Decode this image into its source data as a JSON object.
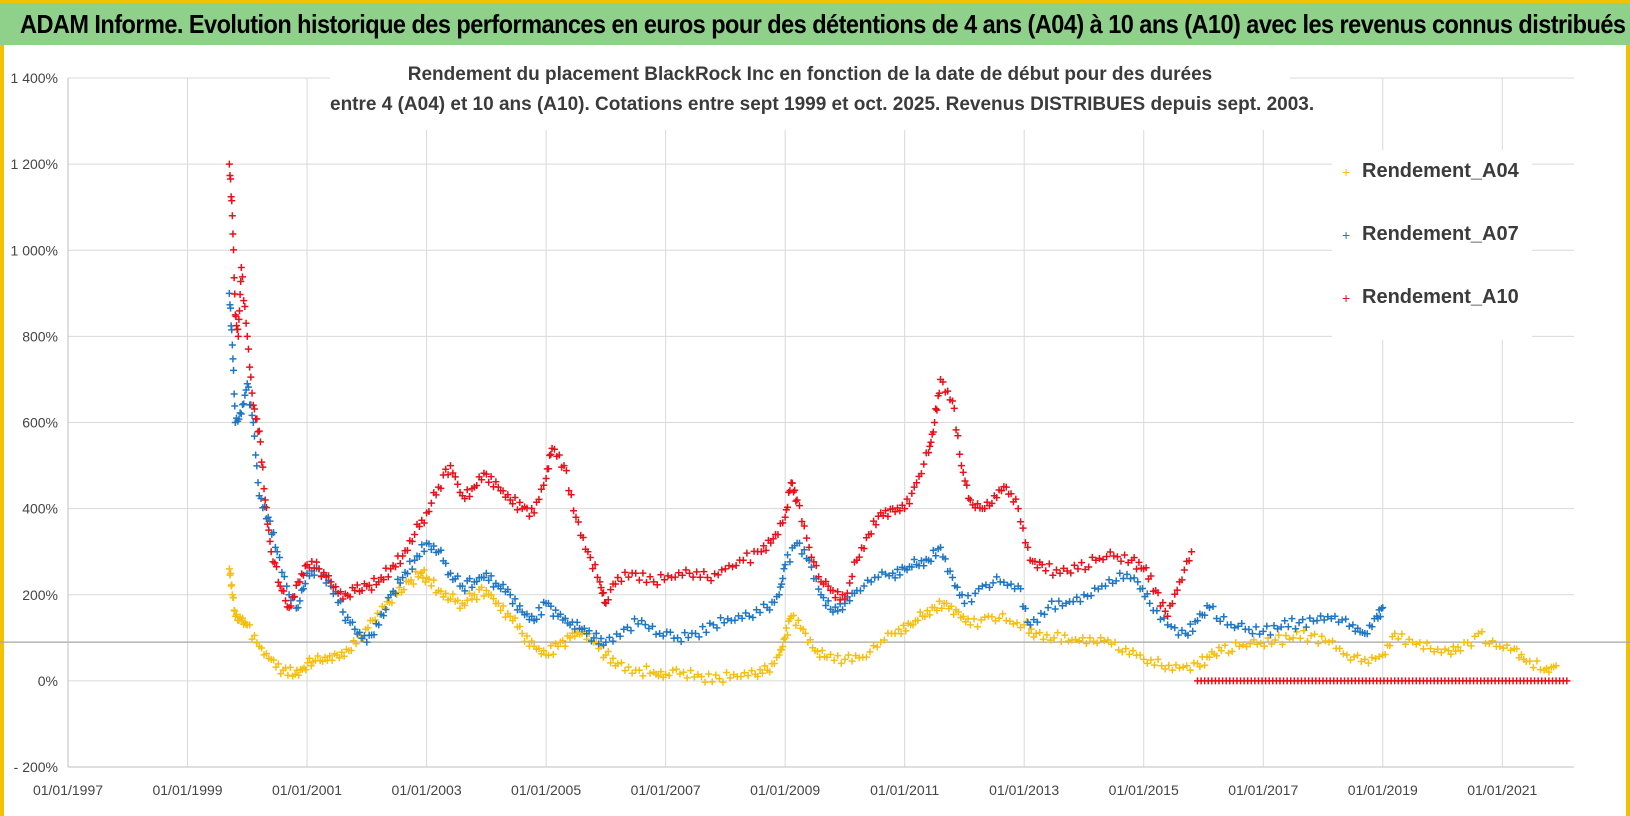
{
  "banner": {
    "title": "ADAM Informe. Evolution historique des performances en euros pour des détentions de 4 ans (A04) à 10 ans (A10) avec les revenus connus distribués"
  },
  "chart_data": {
    "type": "scatter",
    "title_line1": "Rendement du placement BlackRock Inc en fonction de la date de début pour des durées",
    "title_line2": "entre 4 (A04) et 10 ans (A10).  Cotations entre sept 1999 et oct. 2025.  Revenus DISTRIBUES depuis sept. 2003.",
    "xlabel": "",
    "ylabel": "",
    "xlim": [
      1997.0,
      2022.2
    ],
    "ylim": [
      -200,
      1400
    ],
    "x_ticks": [
      1997,
      1999,
      2001,
      2003,
      2005,
      2007,
      2009,
      2011,
      2013,
      2015,
      2017,
      2019,
      2021
    ],
    "x_tick_labels": [
      "01/01/1997",
      "01/01/1999",
      "01/01/2001",
      "01/01/2003",
      "01/01/2005",
      "01/01/2007",
      "01/01/2009",
      "01/01/2011",
      "01/01/2013",
      "01/01/2015",
      "01/01/2017",
      "01/01/2019",
      "01/01/2021"
    ],
    "y_ticks": [
      -200,
      0,
      200,
      400,
      600,
      800,
      1000,
      1200,
      1400
    ],
    "y_tick_labels": [
      "- 200%",
      "0%",
      "200%",
      "400%",
      "600%",
      "800%",
      "1 000%",
      "1 200%",
      "1 400%"
    ],
    "reference_line": 90,
    "legend_position": "top-right",
    "marker": "+",
    "series": [
      {
        "name": "Rendement_A04",
        "color": "#f5bf0f",
        "x": [
          1999.7,
          1999.75,
          1999.8,
          1999.9,
          2000.0,
          2000.2,
          2000.4,
          2000.6,
          2000.8,
          2000.95,
          2001.1,
          2001.3,
          2001.5,
          2001.7,
          2001.9,
          2002.1,
          2002.3,
          2002.5,
          2002.7,
          2002.9,
          2003.0,
          2003.2,
          2003.4,
          2003.6,
          2003.8,
          2004.0,
          2004.2,
          2004.4,
          2004.6,
          2004.8,
          2005.0,
          2005.2,
          2005.4,
          2005.6,
          2005.8,
          2006.0,
          2006.2,
          2006.5,
          2006.8,
          2007.0,
          2007.3,
          2007.6,
          2007.9,
          2008.2,
          2008.5,
          2008.7,
          2008.9,
          2009.0,
          2009.1,
          2009.3,
          2009.5,
          2009.7,
          2010.0,
          2010.3,
          2010.6,
          2010.9,
          2011.1,
          2011.3,
          2011.5,
          2011.7,
          2011.9,
          2012.1,
          2012.4,
          2012.7,
          2013.0,
          2013.2,
          2013.5,
          2013.8,
          2014.1,
          2014.4,
          2014.7,
          2015.0,
          2015.3,
          2015.6,
          2015.9,
          2016.1,
          2016.3,
          2016.6,
          2016.9,
          2017.2,
          2017.5,
          2017.8,
          2018.1,
          2018.4,
          2018.7,
          2019.0,
          2019.2,
          2019.5,
          2019.8,
          2020.1,
          2020.3,
          2020.6,
          2020.9,
          2021.2,
          2021.4,
          2021.7,
          2021.9
        ],
        "values": [
          260,
          200,
          150,
          140,
          130,
          80,
          50,
          25,
          15,
          30,
          45,
          55,
          60,
          70,
          100,
          140,
          170,
          200,
          230,
          250,
          240,
          210,
          190,
          180,
          200,
          210,
          180,
          150,
          110,
          80,
          60,
          80,
          100,
          110,
          90,
          60,
          40,
          25,
          20,
          15,
          20,
          10,
          5,
          10,
          15,
          25,
          60,
          100,
          150,
          120,
          70,
          55,
          50,
          55,
          90,
          120,
          130,
          150,
          170,
          180,
          160,
          130,
          150,
          140,
          130,
          110,
          100,
          95,
          100,
          95,
          75,
          50,
          35,
          30,
          40,
          55,
          70,
          80,
          85,
          95,
          100,
          105,
          90,
          60,
          50,
          60,
          110,
          90,
          75,
          70,
          70,
          110,
          80,
          75,
          45,
          25,
          35
        ]
      },
      {
        "name": "Rendement_A07",
        "color": "#1f77c4",
        "x": [
          1999.7,
          1999.75,
          1999.8,
          1999.9,
          2000.0,
          2000.1,
          2000.2,
          2000.35,
          2000.5,
          2000.7,
          2000.85,
          2001.0,
          2001.2,
          2001.4,
          2001.6,
          2001.8,
          2002.0,
          2002.2,
          2002.4,
          2002.6,
          2002.8,
          2003.0,
          2003.2,
          2003.4,
          2003.6,
          2003.8,
          2004.0,
          2004.2,
          2004.4,
          2004.6,
          2004.8,
          2005.0,
          2005.2,
          2005.4,
          2005.6,
          2005.8,
          2006.0,
          2006.3,
          2006.6,
          2006.9,
          2007.2,
          2007.5,
          2007.8,
          2008.1,
          2008.4,
          2008.7,
          2008.9,
          2009.0,
          2009.2,
          2009.4,
          2009.6,
          2009.8,
          2010.0,
          2010.2,
          2010.5,
          2010.8,
          2011.0,
          2011.2,
          2011.4,
          2011.6,
          2011.8,
          2012.0,
          2012.3,
          2012.6,
          2012.9,
          2013.1,
          2013.4,
          2013.7,
          2014.0,
          2014.3,
          2014.6,
          2014.9,
          2015.1,
          2015.4,
          2015.7,
          2015.9,
          2016.1,
          2016.4,
          2016.7,
          2017.0,
          2017.3,
          2017.6,
          2017.9,
          2018.2,
          2018.5,
          2018.7,
          2018.9,
          2019.0
        ],
        "values": [
          900,
          780,
          600,
          620,
          690,
          600,
          430,
          380,
          300,
          200,
          170,
          250,
          260,
          220,
          160,
          120,
          90,
          130,
          200,
          240,
          280,
          320,
          300,
          250,
          220,
          230,
          250,
          220,
          200,
          160,
          140,
          180,
          150,
          130,
          120,
          100,
          90,
          120,
          140,
          110,
          100,
          110,
          130,
          140,
          150,
          170,
          200,
          270,
          320,
          280,
          200,
          160,
          180,
          210,
          240,
          250,
          260,
          270,
          280,
          310,
          240,
          180,
          220,
          230,
          220,
          130,
          170,
          180,
          200,
          220,
          250,
          230,
          180,
          130,
          110,
          140,
          170,
          130,
          120,
          115,
          125,
          135,
          140,
          150,
          130,
          110,
          150,
          170
        ]
      },
      {
        "name": "Rendement_A10",
        "color": "#e8101a",
        "x": [
          1999.7,
          1999.75,
          1999.8,
          1999.85,
          1999.9,
          2000.0,
          2000.1,
          2000.2,
          2000.3,
          2000.4,
          2000.55,
          2000.7,
          2000.85,
          2001.0,
          2001.2,
          2001.4,
          2001.6,
          2001.8,
          2002.0,
          2002.2,
          2002.4,
          2002.6,
          2002.8,
          2003.0,
          2003.2,
          2003.4,
          2003.6,
          2003.8,
          2004.0,
          2004.2,
          2004.4,
          2004.6,
          2004.8,
          2005.0,
          2005.1,
          2005.3,
          2005.5,
          2005.7,
          2005.9,
          2006.0,
          2006.2,
          2006.5,
          2006.8,
          2007.1,
          2007.4,
          2007.7,
          2008.0,
          2008.3,
          2008.6,
          2008.8,
          2009.0,
          2009.1,
          2009.2,
          2009.4,
          2009.6,
          2009.8,
          2010.0,
          2010.2,
          2010.4,
          2010.6,
          2010.8,
          2011.0,
          2011.2,
          2011.4,
          2011.5,
          2011.6,
          2011.8,
          2011.95,
          2012.1,
          2012.3,
          2012.5,
          2012.7,
          2012.9,
          2013.1,
          2013.3,
          2013.6,
          2013.9,
          2014.2,
          2014.5,
          2014.8,
          2015.0,
          2015.2,
          2015.4,
          2015.6,
          2015.8
        ],
        "values": [
          1200,
          1080,
          850,
          800,
          960,
          800,
          640,
          580,
          420,
          300,
          220,
          170,
          230,
          270,
          260,
          230,
          190,
          210,
          220,
          230,
          260,
          290,
          340,
          390,
          450,
          500,
          430,
          450,
          480,
          450,
          420,
          400,
          390,
          470,
          540,
          500,
          380,
          300,
          230,
          180,
          240,
          250,
          230,
          240,
          250,
          240,
          260,
          280,
          300,
          330,
          380,
          460,
          420,
          310,
          230,
          210,
          190,
          280,
          340,
          390,
          400,
          400,
          460,
          530,
          600,
          700,
          650,
          500,
          420,
          400,
          430,
          450,
          400,
          280,
          270,
          250,
          260,
          280,
          290,
          280,
          260,
          210,
          150,
          230,
          300
        ]
      }
    ],
    "flat_series": {
      "name": "Rendement_A10",
      "x_start": 2015.9,
      "x_end": 2022.1,
      "value": 0
    }
  }
}
